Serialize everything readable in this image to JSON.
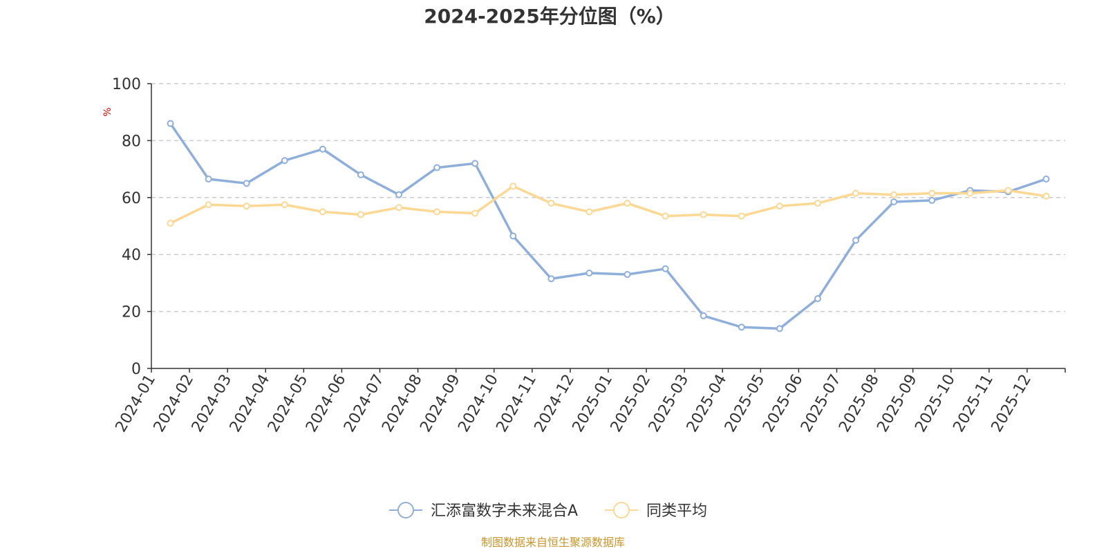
{
  "chart_data": {
    "type": "line",
    "title": "2024-2025年分位图（%）",
    "ylabel": "%",
    "xlabel": "",
    "ylim": [
      0,
      100
    ],
    "yticks": [
      0,
      20,
      40,
      60,
      80,
      100
    ],
    "grid": true,
    "legend_position": "bottom-center",
    "categories": [
      "2024-01",
      "2024-02",
      "2024-03",
      "2024-04",
      "2024-05",
      "2024-06",
      "2024-07",
      "2024-08",
      "2024-09",
      "2024-10",
      "2024-11",
      "2024-12",
      "2025-01",
      "2025-02",
      "2025-03",
      "2025-04",
      "2025-05",
      "2025-06",
      "2025-07",
      "2025-08",
      "2025-09",
      "2025-10",
      "2025-11",
      "2025-12"
    ],
    "series": [
      {
        "name": "汇添富数字未来混合A",
        "color": "#8eaedb",
        "values": [
          86,
          66.5,
          65,
          73,
          77,
          68,
          61,
          70.5,
          72,
          46.5,
          31.5,
          33.5,
          33,
          35,
          18.5,
          14.5,
          14,
          24.5,
          45,
          58.5,
          59,
          62.5,
          62,
          66.5
        ]
      },
      {
        "name": "同类平均",
        "color": "#fcd893",
        "values": [
          51,
          57.5,
          57,
          57.5,
          55,
          54,
          56.5,
          55,
          54.5,
          64,
          58,
          55,
          58,
          53.5,
          54,
          53.5,
          57,
          58,
          61.5,
          61,
          61.5,
          61.5,
          62.5,
          60.5
        ]
      }
    ],
    "source_note": "制图数据来自恒生聚源数据库"
  }
}
